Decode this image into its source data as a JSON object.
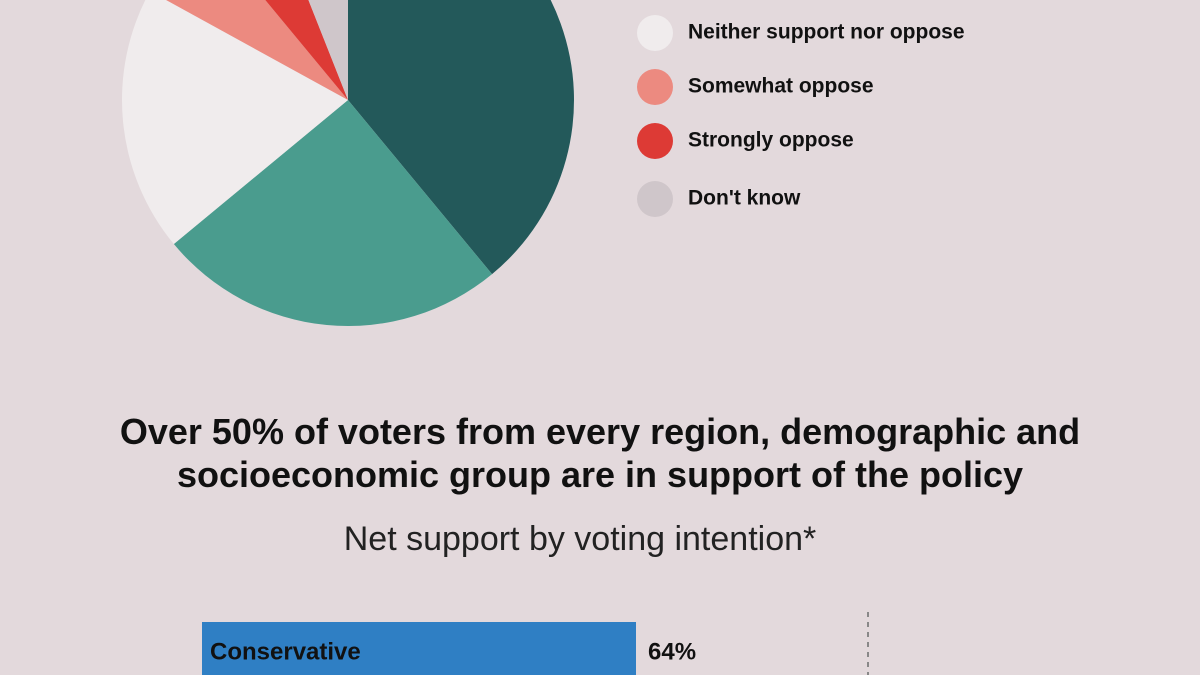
{
  "chart_data": [
    {
      "type": "pie",
      "categories": [
        null,
        null,
        "Neither support nor oppose",
        "Somewhat oppose",
        "Strongly oppose",
        "Don't know"
      ],
      "values": [
        39,
        25,
        19,
        6,
        5,
        6
      ],
      "colors": [
        "#23595a",
        "#4a9c8e",
        "#f0eced",
        "#ec8a80",
        "#dd3a35",
        "#cfc6ca"
      ]
    },
    {
      "type": "hbar",
      "title": "Over 50% of voters from every region, demographic and socioeconomic group are in support of the policy",
      "subtitle": "Net support by voting intention*",
      "categories": [
        "Conservative"
      ],
      "values": [
        64
      ],
      "value_labels": [
        "64%"
      ],
      "color": "#2f7fc4"
    }
  ]
}
